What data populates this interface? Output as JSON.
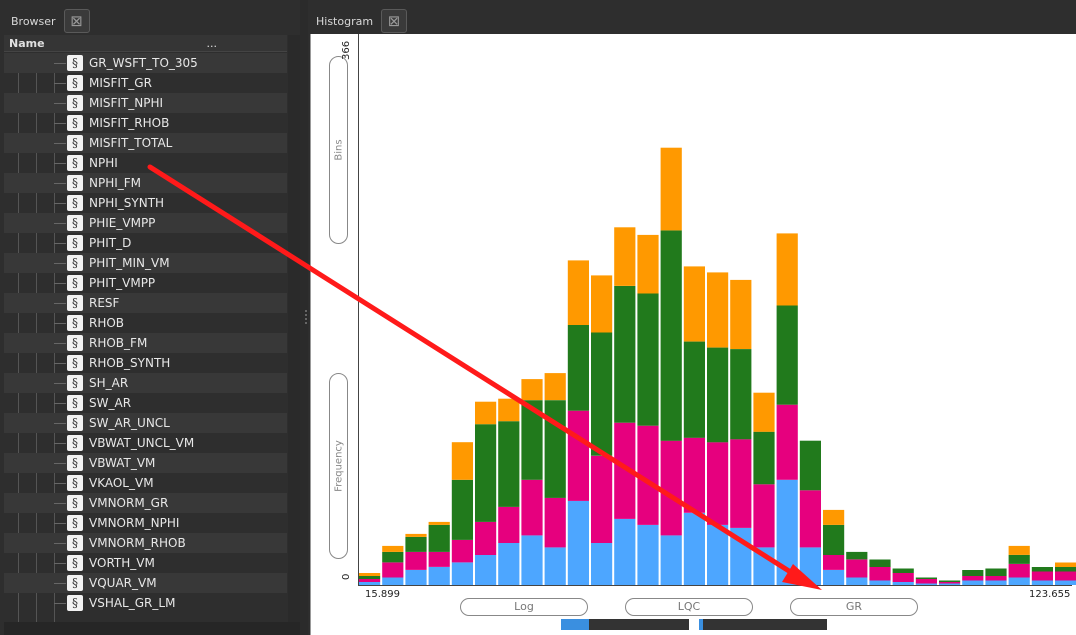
{
  "browser": {
    "title": "Browser",
    "column_name": "Name",
    "column_more": "...",
    "items": [
      "GR_WSFT_TO_305",
      "MISFIT_GR",
      "MISFIT_NPHI",
      "MISFIT_RHOB",
      "MISFIT_TOTAL",
      "NPHI",
      "NPHI_FM",
      "NPHI_SYNTH",
      "PHIE_VMPP",
      "PHIT_D",
      "PHIT_MIN_VM",
      "PHIT_VMPP",
      "RESF",
      "RHOB",
      "RHOB_FM",
      "RHOB_SYNTH",
      "SH_AR",
      "SW_AR",
      "SW_AR_UNCL",
      "VBWAT_UNCL_VM",
      "VBWAT_VM",
      "VKAOL_VM",
      "VMNORM_GR",
      "VMNORM_NPHI",
      "VMNORM_RHOB",
      "VORTH_VM",
      "VQUAR_VM",
      "VSHAL_GR_LM"
    ],
    "item_icon": "log-curve-icon"
  },
  "histogram": {
    "title": "Histogram",
    "y_pill_top": "Bins",
    "y_pill_bottom": "Frequency",
    "x_pills": [
      "Log",
      "LQC",
      "GR"
    ],
    "y_max_label": "366",
    "y_min_label": "0",
    "x_min_label": "15.899",
    "x_max_label": "123.655"
  },
  "colors": {
    "blue": "#4da6ff",
    "magenta": "#e6007e",
    "green": "#217a1c",
    "orange": "#ff9900",
    "annotation": "#ff1a1a"
  },
  "chart_data": {
    "type": "bar",
    "stacked": true,
    "xlim": [
      15.899,
      123.655
    ],
    "ylim": [
      0,
      366
    ],
    "xlabel": "GR",
    "ylabel": "Frequency",
    "series": [
      {
        "values": [
          2,
          5,
          10,
          12,
          15,
          20,
          28,
          33,
          25,
          56,
          28,
          44,
          40,
          33,
          48,
          40,
          38,
          25,
          70,
          25,
          10,
          5,
          3,
          2,
          1,
          1,
          3,
          3,
          5,
          3,
          3,
          3,
          6
        ]
      },
      {
        "values": [
          2,
          10,
          12,
          10,
          15,
          22,
          24,
          37,
          33,
          60,
          58,
          64,
          66,
          63,
          50,
          55,
          59,
          42,
          50,
          38,
          10,
          12,
          9,
          6,
          3,
          1,
          3,
          3,
          9,
          6,
          6,
          6,
          6
        ]
      },
      {
        "values": [
          2,
          7,
          10,
          18,
          40,
          65,
          57,
          53,
          65,
          57,
          82,
          91,
          88,
          140,
          64,
          63,
          60,
          35,
          66,
          33,
          20,
          5,
          5,
          3,
          1,
          1,
          4,
          5,
          6,
          3,
          3,
          5,
          6
        ]
      },
      {
        "values": [
          2,
          4,
          2,
          2,
          25,
          15,
          15,
          14,
          18,
          43,
          38,
          39,
          39,
          55,
          50,
          50,
          46,
          26,
          48,
          0,
          10,
          0,
          0,
          0,
          0,
          0,
          0,
          0,
          6,
          0,
          3,
          6,
          3
        ]
      }
    ]
  }
}
